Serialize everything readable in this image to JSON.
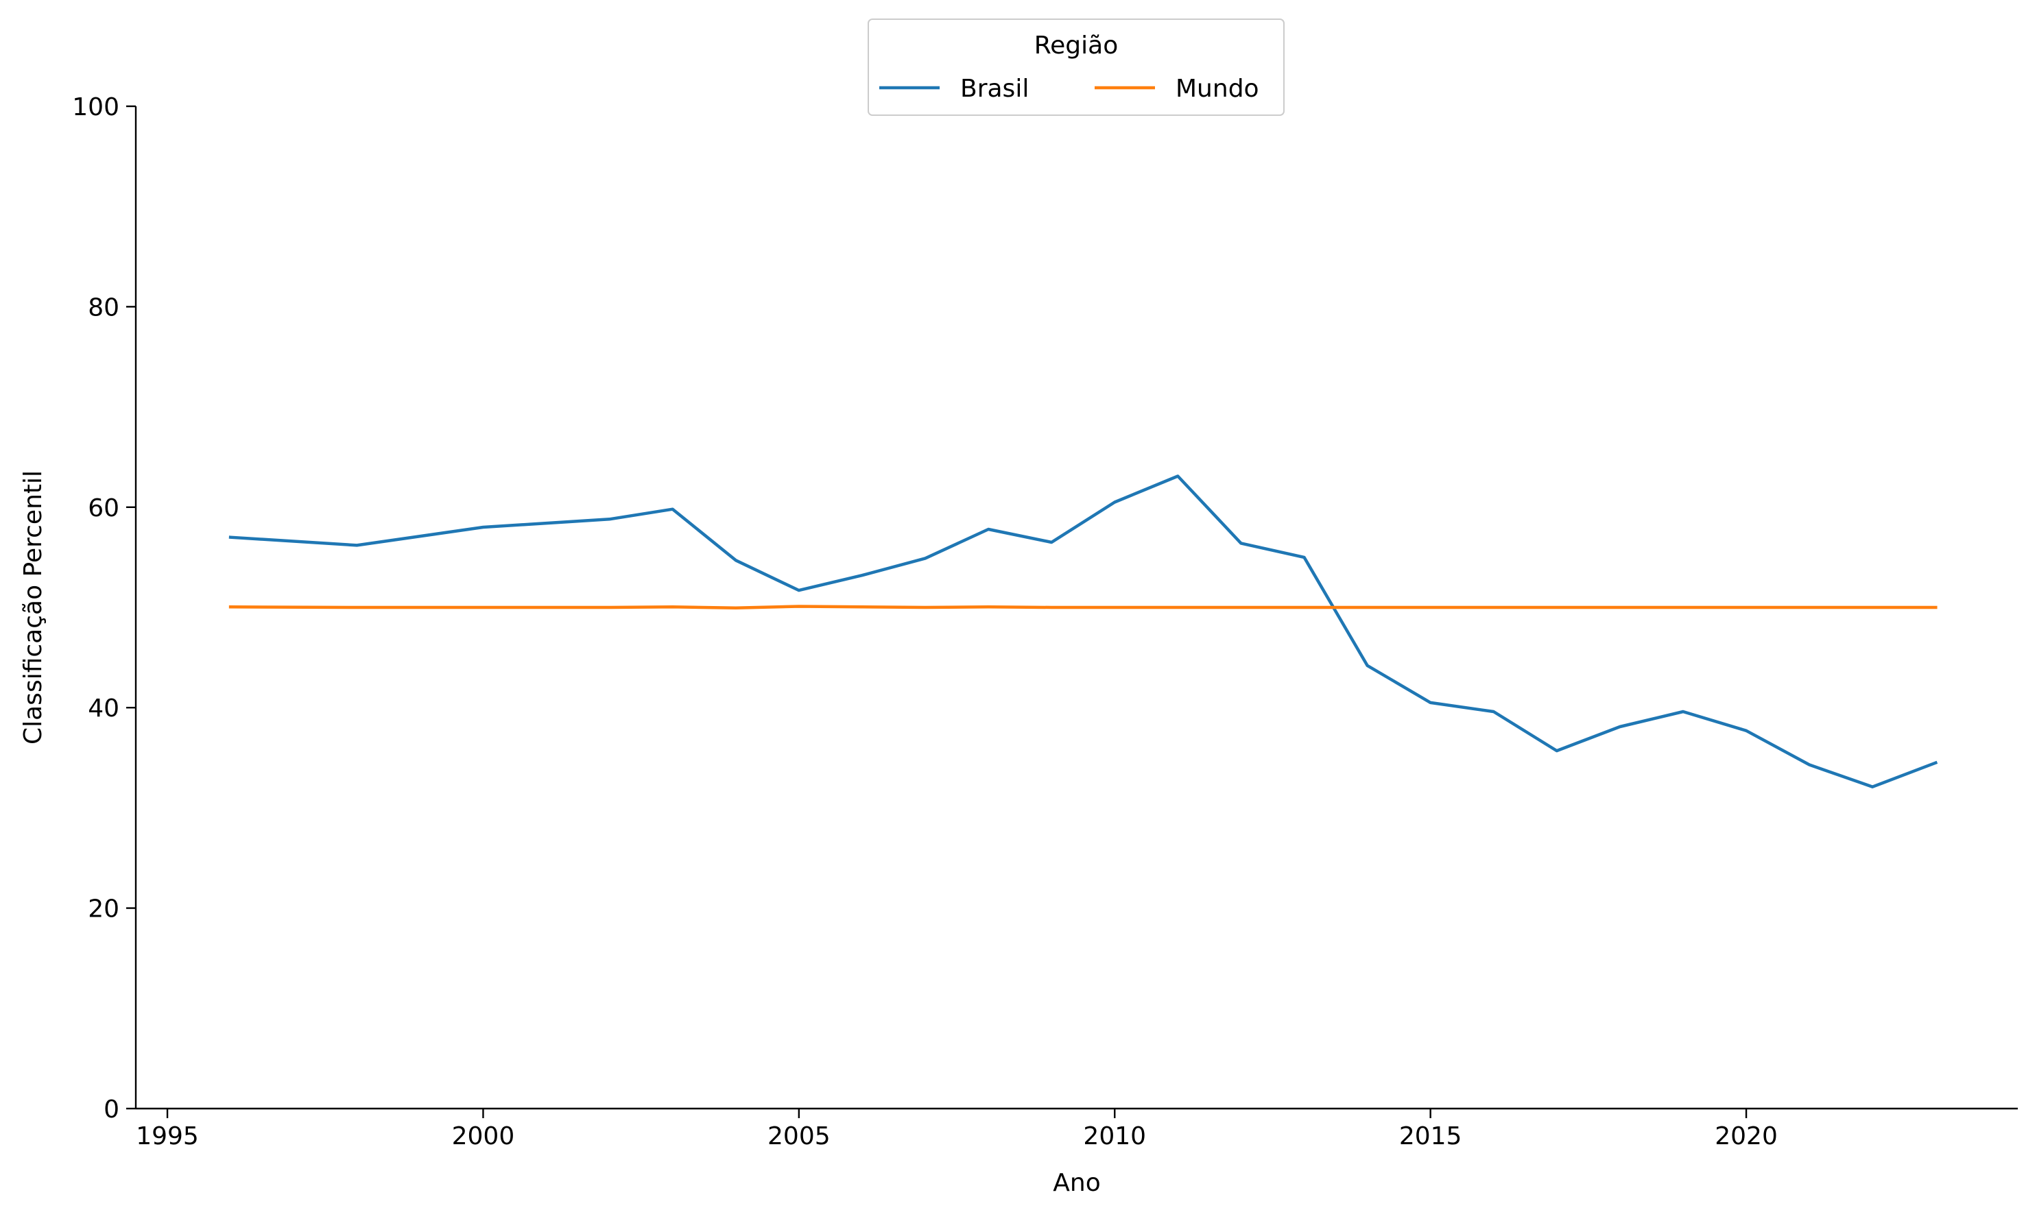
{
  "chart_data": {
    "type": "line",
    "title": "",
    "xlabel": "Ano",
    "ylabel": "Classificação Percentil",
    "xlim": [
      1994.5,
      2024.3
    ],
    "ylim": [
      0,
      100
    ],
    "xticks": [
      1995,
      2000,
      2005,
      2010,
      2015,
      2020
    ],
    "yticks": [
      0,
      20,
      40,
      60,
      80,
      100
    ],
    "grid": false,
    "legend": {
      "title": "Região",
      "placement": "top-center"
    },
    "series": [
      {
        "name": "Brasil",
        "color": "#1f77b4",
        "x": [
          1996,
          1998,
          2000,
          2002,
          2003,
          2004,
          2005,
          2006,
          2007,
          2008,
          2009,
          2010,
          2011,
          2012,
          2013,
          2014,
          2015,
          2016,
          2017,
          2018,
          2019,
          2020,
          2021,
          2022,
          2023
        ],
        "y": [
          57.0,
          56.2,
          58.0,
          58.8,
          59.8,
          54.7,
          51.7,
          53.2,
          54.9,
          57.8,
          56.5,
          60.5,
          63.1,
          56.4,
          55.0,
          44.2,
          40.5,
          39.6,
          35.7,
          38.1,
          39.6,
          37.7,
          34.3,
          32.1,
          34.5
        ]
      },
      {
        "name": "Mundo",
        "color": "#ff7f0e",
        "x": [
          1996,
          1998,
          2000,
          2002,
          2003,
          2004,
          2005,
          2006,
          2007,
          2008,
          2009,
          2010,
          2011,
          2012,
          2013,
          2014,
          2015,
          2016,
          2017,
          2018,
          2019,
          2020,
          2021,
          2022,
          2023
        ],
        "y": [
          50.05,
          50.0,
          50.0,
          50.0,
          50.05,
          49.95,
          50.1,
          50.05,
          50.0,
          50.05,
          50.0,
          50.0,
          50.0,
          50.0,
          50.0,
          50.0,
          50.0,
          50.0,
          50.0,
          50.0,
          50.0,
          50.0,
          50.0,
          50.0,
          50.0
        ]
      }
    ]
  }
}
